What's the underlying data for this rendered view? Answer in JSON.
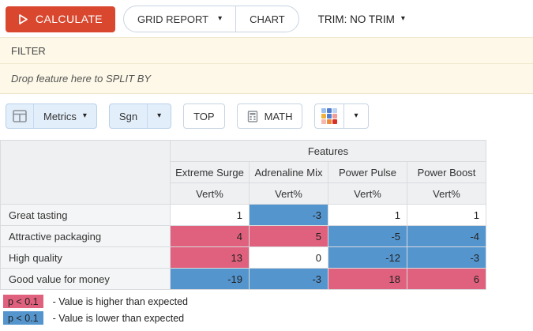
{
  "toolbar": {
    "calculate_label": "CALCULATE",
    "view_toggle": {
      "grid_label": "GRID REPORT",
      "chart_label": "CHART"
    },
    "trim_label": "TRIM: NO TRIM"
  },
  "filter": {
    "label": "FILTER",
    "split_by_placeholder": "Drop feature here to SPLIT BY"
  },
  "controls": {
    "metrics_label": "Metrics",
    "sgn_label": "Sgn",
    "top_label": "TOP",
    "math_label": "MATH",
    "palette_icon_colors": [
      "#9DBFEE",
      "#4E7FD0",
      "#BAD4F2",
      "#F0B03C",
      "#4E7FD0",
      "#F09C97",
      "#F4B9AE",
      "#EE8B3B",
      "#D93025"
    ]
  },
  "table": {
    "group_header": "Features",
    "columns": [
      "Extreme Surge",
      "Adrenaline Mix",
      "Power Pulse",
      "Power Boost"
    ],
    "metric": "Vert%",
    "rows": [
      {
        "label": "Great tasting",
        "values": [
          1,
          -3,
          1,
          1
        ],
        "highlight": [
          "none",
          "lower",
          "none",
          "none"
        ]
      },
      {
        "label": "Attractive packaging",
        "values": [
          4,
          5,
          -5,
          -4
        ],
        "highlight": [
          "higher",
          "higher",
          "lower",
          "lower"
        ]
      },
      {
        "label": "High quality",
        "values": [
          13,
          0,
          -12,
          -3
        ],
        "highlight": [
          "higher",
          "none",
          "lower",
          "lower"
        ]
      },
      {
        "label": "Good value for money",
        "values": [
          -19,
          -3,
          18,
          6
        ],
        "highlight": [
          "lower",
          "lower",
          "higher",
          "higher"
        ]
      }
    ]
  },
  "legend": [
    {
      "badge": "p < 0.1",
      "type": "higher",
      "label": "- Value is higher than expected"
    },
    {
      "badge": "p < 0.1",
      "type": "lower",
      "label": "- Value is lower than expected"
    }
  ],
  "colors": {
    "calculate_button": "#D9472F",
    "highlight_higher": "#E0617E",
    "highlight_lower": "#5595CE",
    "filter_bar_bg": "#FDF8E7",
    "active_button_bg": "#E2EEFA"
  }
}
